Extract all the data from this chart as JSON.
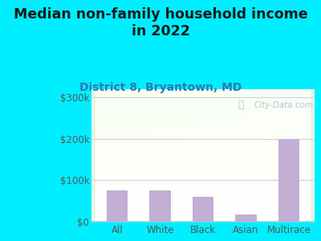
{
  "categories": [
    "All",
    "White",
    "Black",
    "Asian",
    "Multirace"
  ],
  "values": [
    75000,
    75000,
    60000,
    18000,
    200000
  ],
  "bar_color": "#c4aed4",
  "title": "Median non-family household income\nin 2022",
  "subtitle": "District 8, Bryantown, MD",
  "yticks": [
    0,
    100000,
    200000,
    300000
  ],
  "ytick_labels": [
    "$0",
    "$100k",
    "$200k",
    "$300k"
  ],
  "ylim": [
    0,
    320000
  ],
  "bg_outer": "#00eeff",
  "bg_plot_top": "#e8f5e2",
  "bg_plot_bottom": "#f5fff5",
  "gridline_color": "#d8c8e8",
  "watermark": "City-Data.com",
  "title_fontsize": 12.5,
  "subtitle_fontsize": 10,
  "tick_fontsize": 8.5,
  "title_color": "#1a1a1a",
  "subtitle_color": "#2a7ab0",
  "tick_color": "#555555"
}
